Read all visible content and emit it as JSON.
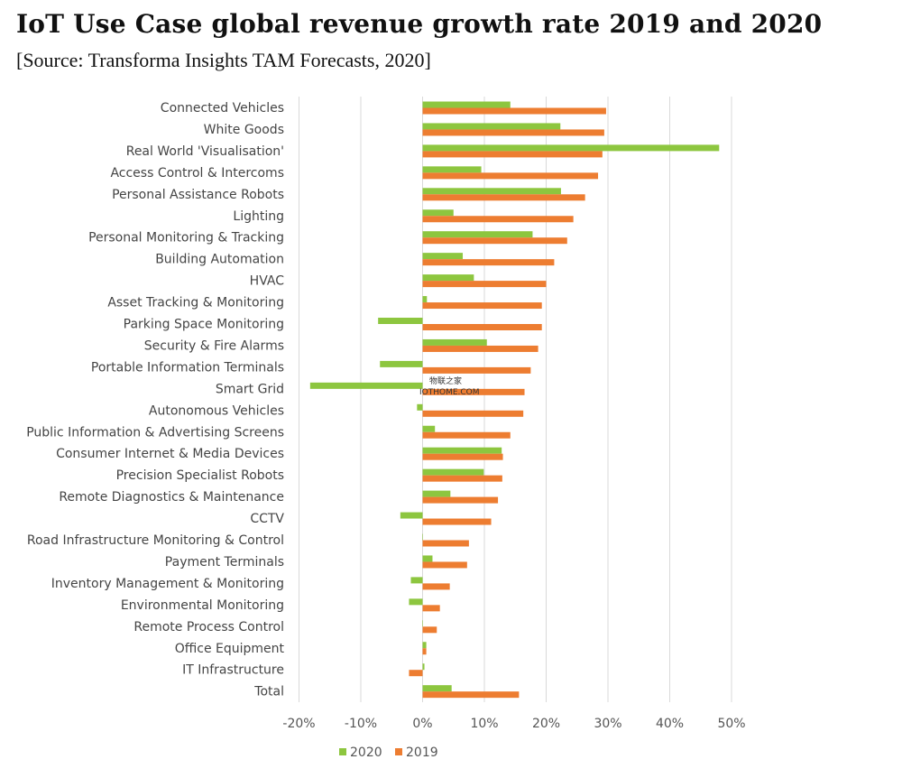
{
  "chart_data": {
    "type": "bar",
    "orientation": "horizontal",
    "title": "IoT Use Case global revenue growth rate 2019 and 2020",
    "subtitle": "[Source: Transforma Insights TAM Forecasts, 2020]",
    "categories": [
      "Connected Vehicles",
      "White Goods",
      "Real World 'Visualisation'",
      "Access Control & Intercoms",
      "Personal Assistance Robots",
      "Lighting",
      "Personal Monitoring & Tracking",
      "Building Automation",
      "HVAC",
      "Asset Tracking & Monitoring",
      "Parking Space Monitoring",
      "Security & Fire Alarms",
      "Portable Information Terminals",
      "Smart Grid",
      "Autonomous Vehicles",
      "Public Information & Advertising Screens",
      "Consumer Internet & Media Devices",
      "Precision Specialist Robots",
      "Remote Diagnostics & Maintenance",
      "CCTV",
      "Road Infrastructure Monitoring & Control",
      "Payment Terminals",
      "Inventory Management & Monitoring",
      "Environmental Monitoring",
      "Remote Process Control",
      "Office Equipment",
      "IT Infrastructure",
      "Total"
    ],
    "series": [
      {
        "name": "2020",
        "color": "#8DC63F",
        "values": [
          14.2,
          22.3,
          48.0,
          9.5,
          22.4,
          5.0,
          17.8,
          6.5,
          8.3,
          0.7,
          -7.2,
          10.4,
          -6.9,
          -18.2,
          -0.9,
          2.0,
          12.8,
          9.9,
          4.5,
          -3.6,
          0.0,
          1.6,
          -1.9,
          -2.2,
          0.0,
          0.6,
          0.3,
          4.7
        ]
      },
      {
        "name": "2019",
        "color": "#ED7D31",
        "values": [
          29.7,
          29.4,
          29.1,
          28.4,
          26.3,
          24.4,
          23.4,
          21.3,
          20.0,
          19.3,
          19.3,
          18.7,
          17.5,
          16.5,
          16.3,
          14.2,
          13.0,
          12.9,
          12.2,
          11.1,
          7.5,
          7.2,
          4.4,
          2.8,
          2.3,
          0.6,
          -2.2,
          15.6
        ]
      }
    ],
    "xlim": [
      -20,
      50
    ],
    "xticks": [
      -20,
      -10,
      0,
      10,
      20,
      30,
      40,
      50
    ],
    "xtick_labels": [
      "-20%",
      "-10%",
      "0%",
      "10%",
      "20%",
      "30%",
      "40%",
      "50%"
    ],
    "grid": true,
    "legend_position": "bottom-center",
    "legend": [
      "2020",
      "2019"
    ]
  },
  "watermark": {
    "line1": "物联之家",
    "line2": "IOTHOME.COM"
  }
}
